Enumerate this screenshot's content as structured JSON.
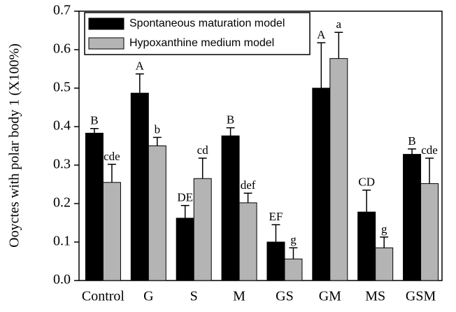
{
  "chart_data": {
    "type": "bar",
    "ylabel": "Ooyctes with polar body 1 (X100%)",
    "categories": [
      "Control",
      "G",
      "S",
      "M",
      "GS",
      "GM",
      "MS",
      "GSM"
    ],
    "series": [
      {
        "name": "Spontaneous maturation model",
        "color": "#000000",
        "values": [
          0.383,
          0.487,
          0.162,
          0.376,
          0.1,
          0.5,
          0.178,
          0.328
        ],
        "errors": [
          0.012,
          0.05,
          0.033,
          0.021,
          0.045,
          0.118,
          0.057,
          0.014
        ],
        "annotations": [
          "B",
          "A",
          "DE",
          "B",
          "EF",
          "A",
          "CD",
          "B"
        ]
      },
      {
        "name": "Hypoxanthine medium model",
        "color": "#b4b4b4",
        "values": [
          0.255,
          0.35,
          0.265,
          0.202,
          0.056,
          0.577,
          0.085,
          0.252
        ],
        "errors": [
          0.047,
          0.022,
          0.053,
          0.025,
          0.029,
          0.068,
          0.028,
          0.066
        ],
        "annotations": [
          "cde",
          "b",
          "cd",
          "def",
          "g",
          "a",
          "g",
          "cde"
        ]
      }
    ],
    "ylim": [
      0,
      0.7
    ],
    "yticks": [
      {
        "value": 0,
        "label": "0.0"
      },
      0.1,
      0.2,
      0.3,
      0.4,
      0.5,
      0.6,
      0.7
    ],
    "legend": "upper left"
  }
}
